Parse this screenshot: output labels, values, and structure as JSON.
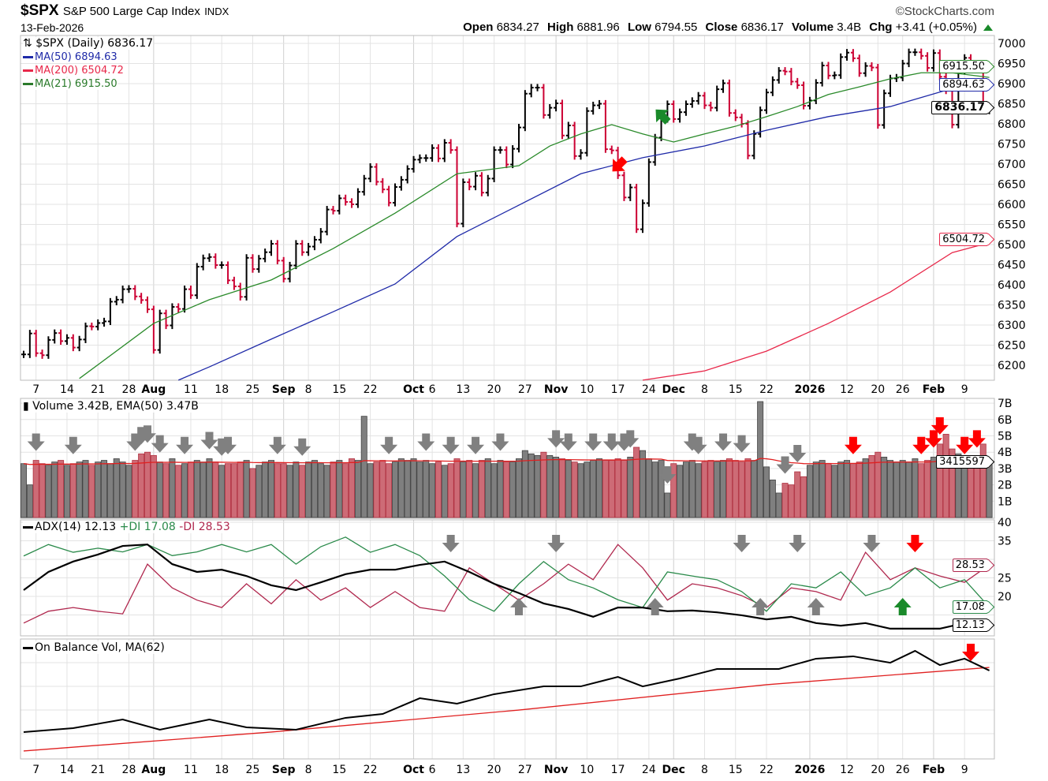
{
  "header": {
    "symbol": "$SPX",
    "name": "S&P 500 Large Cap Index",
    "exchange": "INDX",
    "date": "13-Feb-2026",
    "brand": "©StockCharts.com",
    "open_label": "Open",
    "open": "6834.27",
    "high_label": "High",
    "high": "6881.96",
    "low_label": "Low",
    "low": "6794.55",
    "close_label": "Close",
    "close": "6836.17",
    "volume_label": "Volume",
    "volume": "3.4B",
    "chg_label": "Chg",
    "chg": "+3.41 (+0.05%)",
    "chg_color": "#1a8a2a"
  },
  "legends": {
    "price": "$SPX (Daily) 6836.17",
    "ma50": "MA(50) 6894.63",
    "ma200": "MA(200) 6504.72",
    "ma21": "MA(21) 6915.50",
    "volume": "Volume 3.42B, EMA(50) 3.47B",
    "adx": "ADX(14) 12.13",
    "pdi": "+DI 17.08",
    "mdi": "-DI 28.53",
    "obv": "On Balance Vol, MA(62)"
  },
  "tags": {
    "ma21": "6915.50",
    "ma50": "6894.63",
    "close": "6836.17",
    "ma200": "6504.72",
    "volume_ema": "3415597",
    "mdi": "28.53",
    "pdi": "17.08",
    "adx": "12.13"
  },
  "colors": {
    "up_bar": "#000000",
    "down_bar": "#cc0033",
    "ma50": "#1f2aa8",
    "ma200": "#e8284a",
    "ma21": "#2a8a2a",
    "vol_up": "#7f7f7f",
    "vol_down": "#cd6b76",
    "vol_ema": "#e02020",
    "adx": "#000000",
    "pdi": "#2a8a4a",
    "mdi": "#b0284e",
    "obv": "#000000",
    "obv_ma": "#e02020",
    "arrow_gray": "#808080",
    "arrow_red": "#ff0000",
    "arrow_green": "#1a8a2a"
  },
  "chart_data": {
    "type": "ohlc-bar with indicator panels",
    "x_ticks": [
      {
        "i": 2,
        "label": "7"
      },
      {
        "i": 7,
        "label": "14"
      },
      {
        "i": 12,
        "label": "21"
      },
      {
        "i": 17,
        "label": "28"
      },
      {
        "i": 21,
        "label": "Aug",
        "bold": true
      },
      {
        "i": 27,
        "label": "11"
      },
      {
        "i": 32,
        "label": "18"
      },
      {
        "i": 37,
        "label": "25"
      },
      {
        "i": 42,
        "label": "Sep",
        "bold": true
      },
      {
        "i": 46,
        "label": "8"
      },
      {
        "i": 51,
        "label": "15"
      },
      {
        "i": 56,
        "label": "22"
      },
      {
        "i": 63,
        "label": "Oct",
        "bold": true
      },
      {
        "i": 66,
        "label": "6"
      },
      {
        "i": 71,
        "label": "13"
      },
      {
        "i": 76,
        "label": "20"
      },
      {
        "i": 81,
        "label": "27"
      },
      {
        "i": 86,
        "label": "Nov",
        "bold": true
      },
      {
        "i": 91,
        "label": "10"
      },
      {
        "i": 96,
        "label": "17"
      },
      {
        "i": 101,
        "label": "24"
      },
      {
        "i": 105,
        "label": "Dec",
        "bold": true
      },
      {
        "i": 110,
        "label": "8"
      },
      {
        "i": 115,
        "label": "15"
      },
      {
        "i": 120,
        "label": "22"
      },
      {
        "i": 127,
        "label": "2026",
        "bold": true
      },
      {
        "i": 133,
        "label": "12"
      },
      {
        "i": 138,
        "label": "20"
      },
      {
        "i": 142,
        "label": "26"
      },
      {
        "i": 147,
        "label": "Feb",
        "bold": true
      },
      {
        "i": 152,
        "label": "9"
      }
    ],
    "price": {
      "yticks": [
        7000,
        6950,
        6900,
        6850,
        6800,
        6750,
        6700,
        6650,
        6600,
        6550,
        6500,
        6450,
        6400,
        6350,
        6300,
        6250,
        6200
      ],
      "ylim": [
        6160,
        7020
      ],
      "close": [
        6227,
        6279,
        6230,
        6225,
        6263,
        6280,
        6260,
        6268,
        6244,
        6264,
        6297,
        6296,
        6305,
        6309,
        6358,
        6363,
        6389,
        6390,
        6371,
        6362,
        6339,
        6238,
        6329,
        6299,
        6345,
        6340,
        6389,
        6374,
        6445,
        6466,
        6469,
        6449,
        6449,
        6411,
        6396,
        6370,
        6467,
        6439,
        6465,
        6481,
        6502,
        6460,
        6415,
        6448,
        6502,
        6481,
        6495,
        6512,
        6532,
        6587,
        6584,
        6615,
        6606,
        6600,
        6631,
        6664,
        6693,
        6656,
        6637,
        6604,
        6643,
        6661,
        6688,
        6711,
        6715,
        6715,
        6740,
        6714,
        6753,
        6735,
        6552,
        6655,
        6644,
        6671,
        6629,
        6664,
        6735,
        6735,
        6699,
        6738,
        6791,
        6875,
        6890,
        6890,
        6822,
        6840,
        6851,
        6771,
        6796,
        6720,
        6728,
        6832,
        6846,
        6850,
        6737,
        6734,
        6672,
        6617,
        6642,
        6538,
        6603,
        6705,
        6766,
        6812,
        6849,
        6812,
        6829,
        6849,
        6857,
        6870,
        6846,
        6840,
        6886,
        6901,
        6827,
        6816,
        6800,
        6721,
        6775,
        6834,
        6878,
        6909,
        6932,
        6930,
        6905,
        6896,
        6845,
        6858,
        6902,
        6945,
        6920,
        6921,
        6966,
        6977,
        6963,
        6926,
        6944,
        6940,
        6797,
        6876,
        6913,
        6915,
        6950,
        6978,
        6978,
        6969,
        6939,
        6976,
        6917,
        6883,
        6798,
        6932,
        6964,
        6942,
        6941,
        6833,
        6836.17
      ],
      "ma21": {
        "i": [
          9,
          21,
          30,
          40,
          50,
          60,
          70,
          80,
          85,
          90,
          95,
          100,
          105,
          110,
          115,
          120,
          125,
          130,
          135,
          140,
          145,
          150,
          156
        ],
        "v": [
          6167,
          6304,
          6363,
          6412,
          6490,
          6578,
          6676,
          6696,
          6745,
          6775,
          6798,
          6775,
          6755,
          6775,
          6794,
          6818,
          6843,
          6873,
          6892,
          6912,
          6927,
          6927,
          6915.5
        ]
      },
      "ma50": {
        "i": [
          25,
          30,
          40,
          50,
          60,
          70,
          80,
          90,
          100,
          110,
          120,
          130,
          140,
          150,
          156
        ],
        "v": [
          6163,
          6196,
          6265,
          6333,
          6402,
          6520,
          6598,
          6676,
          6716,
          6745,
          6784,
          6818,
          6843,
          6888,
          6894.63
        ]
      },
      "ma200": {
        "i": [
          100,
          110,
          120,
          130,
          140,
          150,
          156
        ],
        "v": [
          6163,
          6186,
          6235,
          6304,
          6382,
          6480,
          6504.72
        ]
      }
    },
    "volume": {
      "unit": "B",
      "yticks": [
        "7B",
        "6B",
        "5B",
        "4B",
        "3B",
        "2B",
        "1B"
      ],
      "values": [
        3.3,
        2.0,
        3.5,
        3.3,
        3.2,
        3.4,
        3.5,
        3.2,
        3.3,
        3.4,
        3.5,
        3.2,
        3.4,
        3.5,
        3.3,
        3.6,
        3.4,
        3.2,
        3.5,
        3.9,
        4.0,
        3.8,
        3.4,
        3.3,
        3.6,
        3.2,
        3.3,
        3.4,
        3.5,
        3.4,
        3.6,
        3.4,
        3.2,
        3.3,
        3.3,
        3.4,
        3.5,
        3.0,
        3.2,
        3.4,
        3.5,
        3.3,
        3.3,
        3.2,
        3.4,
        3.2,
        3.4,
        3.5,
        3.3,
        3.2,
        3.4,
        3.5,
        3.3,
        3.6,
        3.5,
        6.2,
        3.3,
        3.4,
        3.5,
        3.3,
        3.4,
        3.6,
        3.5,
        3.6,
        3.4,
        3.5,
        3.3,
        3.4,
        3.2,
        3.3,
        3.6,
        3.4,
        3.5,
        3.3,
        3.5,
        3.6,
        3.3,
        3.5,
        3.4,
        3.4,
        3.6,
        4.1,
        3.9,
        3.8,
        4.0,
        3.8,
        3.7,
        3.6,
        3.5,
        3.4,
        3.3,
        3.4,
        3.5,
        3.6,
        3.5,
        3.5,
        3.6,
        3.5,
        3.7,
        4.3,
        4.1,
        3.6,
        3.4,
        3.5,
        1.5,
        3.3,
        3.2,
        3.4,
        3.5,
        3.3,
        3.4,
        3.5,
        3.4,
        3.5,
        3.6,
        3.5,
        3.4,
        3.6,
        3.5,
        7.1,
        3.1,
        2.3,
        1.5,
        2.1,
        2.0,
        2.8,
        2.5,
        3.2,
        3.4,
        3.5,
        3.3,
        3.2,
        3.4,
        3.5,
        3.3,
        3.4,
        3.6,
        3.8,
        4.0,
        3.7,
        3.5,
        3.4,
        3.5,
        3.4,
        3.6,
        3.3,
        3.5,
        3.7,
        4.5,
        5.1,
        4.2,
        3.9,
        3.3,
        3.4,
        3.7,
        4.5,
        3.42
      ]
    },
    "adx": {
      "yticks": [
        40,
        35,
        25,
        20
      ],
      "i": [
        0,
        4,
        8,
        12,
        16,
        20,
        24,
        28,
        32,
        36,
        40,
        44,
        48,
        52,
        56,
        60,
        64,
        68,
        72,
        76,
        80,
        84,
        88,
        92,
        96,
        100,
        104,
        108,
        112,
        116,
        120,
        124,
        128,
        132,
        136,
        140,
        144,
        148,
        152,
        156
      ],
      "adx": [
        21.7,
        26.6,
        29.4,
        31.3,
        33.6,
        34,
        28.7,
        26.6,
        27.2,
        25.5,
        23,
        21.7,
        23.8,
        26,
        27.2,
        27.2,
        28.5,
        29.4,
        26.6,
        23.4,
        20.9,
        18.1,
        16.6,
        14.5,
        17,
        17,
        16,
        16.2,
        15.7,
        14.9,
        13.8,
        14.5,
        12.8,
        12.1,
        12.8,
        11.3,
        11.3,
        11.3,
        12.8,
        12.13
      ],
      "pdi": [
        30.9,
        34,
        31.9,
        33,
        32,
        34,
        31,
        32,
        34,
        32,
        34,
        28.7,
        33.4,
        36,
        31.9,
        34,
        31,
        25.5,
        19.1,
        16,
        23.4,
        29.4,
        24.5,
        22.3,
        19.1,
        17,
        26.6,
        25.5,
        24.5,
        21.3,
        16,
        23.4,
        22.3,
        26.6,
        20.2,
        22.3,
        27.7,
        22.3,
        24.5,
        17.08
      ],
      "mdi": [
        12.8,
        16,
        17,
        16,
        15.3,
        28.7,
        22.3,
        19,
        17,
        23.4,
        18,
        24.5,
        19,
        22.3,
        17,
        21.3,
        17,
        16,
        27.7,
        23.4,
        19,
        23.4,
        28.7,
        24.5,
        34,
        27.7,
        19,
        23.4,
        22.3,
        20.2,
        17,
        22.3,
        21.3,
        19,
        31.9,
        24.5,
        27.7,
        25.5,
        23.8,
        28.53
      ]
    },
    "obv": {
      "i": [
        0,
        8,
        16,
        22,
        30,
        36,
        44,
        52,
        58,
        64,
        70,
        76,
        84,
        90,
        96,
        100,
        106,
        112,
        118,
        122,
        128,
        134,
        140,
        144,
        148,
        152,
        156
      ],
      "obv": [
        22.7,
        26,
        33.3,
        24.7,
        33.3,
        26.7,
        24.7,
        34.7,
        38,
        51.3,
        46.7,
        54.7,
        61.3,
        61.3,
        69.3,
        61.3,
        68,
        76,
        76,
        76,
        84.7,
        86.7,
        81.3,
        91.3,
        79.3,
        84.7,
        74.7
      ],
      "ma_i": [
        0,
        40,
        80,
        120,
        156
      ],
      "ma": [
        6.7,
        22.7,
        41.3,
        62.7,
        77.3
      ]
    },
    "annotations": [
      {
        "panel": "price",
        "i": 96,
        "dir": "down-left",
        "color": "red"
      },
      {
        "panel": "price",
        "i": 103,
        "dir": "up-left",
        "color": "green"
      },
      {
        "panel": "volume",
        "i": 2,
        "dir": "down",
        "color": "gray"
      },
      {
        "panel": "volume",
        "i": 8,
        "dir": "down",
        "color": "gray"
      },
      {
        "panel": "volume",
        "i": 18,
        "dir": "down",
        "color": "gray"
      },
      {
        "panel": "volume",
        "i": 19,
        "dir": "down",
        "color": "gray"
      },
      {
        "panel": "volume",
        "i": 20,
        "dir": "down",
        "color": "gray"
      },
      {
        "panel": "volume",
        "i": 22,
        "dir": "down",
        "color": "gray"
      },
      {
        "panel": "volume",
        "i": 26,
        "dir": "down",
        "color": "gray"
      },
      {
        "panel": "volume",
        "i": 30,
        "dir": "down",
        "color": "gray"
      },
      {
        "panel": "volume",
        "i": 32,
        "dir": "down",
        "color": "gray"
      },
      {
        "panel": "volume",
        "i": 33,
        "dir": "down",
        "color": "gray"
      },
      {
        "panel": "volume",
        "i": 41,
        "dir": "down",
        "color": "gray"
      },
      {
        "panel": "volume",
        "i": 45,
        "dir": "down",
        "color": "gray"
      },
      {
        "panel": "volume",
        "i": 59,
        "dir": "down",
        "color": "gray"
      },
      {
        "panel": "volume",
        "i": 65,
        "dir": "down",
        "color": "gray"
      },
      {
        "panel": "volume",
        "i": 69,
        "dir": "down",
        "color": "gray"
      },
      {
        "panel": "volume",
        "i": 73,
        "dir": "down",
        "color": "gray"
      },
      {
        "panel": "volume",
        "i": 77,
        "dir": "down",
        "color": "gray"
      },
      {
        "panel": "volume",
        "i": 86,
        "dir": "down",
        "color": "gray"
      },
      {
        "panel": "volume",
        "i": 88,
        "dir": "down",
        "color": "gray"
      },
      {
        "panel": "volume",
        "i": 92,
        "dir": "down",
        "color": "gray"
      },
      {
        "panel": "volume",
        "i": 95,
        "dir": "down",
        "color": "gray"
      },
      {
        "panel": "volume",
        "i": 97,
        "dir": "down",
        "color": "gray"
      },
      {
        "panel": "volume",
        "i": 98,
        "dir": "down",
        "color": "gray"
      },
      {
        "panel": "volume",
        "i": 104,
        "dir": "down",
        "color": "gray"
      },
      {
        "panel": "volume",
        "i": 108,
        "dir": "down",
        "color": "gray"
      },
      {
        "panel": "volume",
        "i": 109,
        "dir": "down",
        "color": "gray"
      },
      {
        "panel": "volume",
        "i": 113,
        "dir": "down",
        "color": "gray"
      },
      {
        "panel": "volume",
        "i": 116,
        "dir": "down",
        "color": "gray"
      },
      {
        "panel": "volume",
        "i": 123,
        "dir": "down",
        "color": "gray"
      },
      {
        "panel": "volume",
        "i": 125,
        "dir": "down",
        "color": "gray"
      },
      {
        "panel": "volume",
        "i": 134,
        "dir": "down",
        "color": "red"
      },
      {
        "panel": "volume",
        "i": 145,
        "dir": "down",
        "color": "red"
      },
      {
        "panel": "volume",
        "i": 147,
        "dir": "down",
        "color": "red"
      },
      {
        "panel": "volume",
        "i": 148,
        "dir": "down",
        "color": "red"
      },
      {
        "panel": "volume",
        "i": 152,
        "dir": "down",
        "color": "red"
      },
      {
        "panel": "volume",
        "i": 154,
        "dir": "down",
        "color": "red"
      },
      {
        "panel": "adx",
        "i": 69,
        "dir": "down",
        "color": "gray"
      },
      {
        "panel": "adx",
        "i": 86,
        "dir": "down",
        "color": "gray"
      },
      {
        "panel": "adx",
        "i": 116,
        "dir": "down",
        "color": "gray"
      },
      {
        "panel": "adx",
        "i": 125,
        "dir": "down",
        "color": "gray"
      },
      {
        "panel": "adx",
        "i": 137,
        "dir": "down",
        "color": "gray"
      },
      {
        "panel": "adx",
        "i": 144,
        "dir": "down",
        "color": "red"
      },
      {
        "panel": "adx",
        "i": 80,
        "dir": "up",
        "color": "gray"
      },
      {
        "panel": "adx",
        "i": 102,
        "dir": "up",
        "color": "gray"
      },
      {
        "panel": "adx",
        "i": 119,
        "dir": "up",
        "color": "gray"
      },
      {
        "panel": "adx",
        "i": 128,
        "dir": "up",
        "color": "gray"
      },
      {
        "panel": "adx",
        "i": 142,
        "dir": "up",
        "color": "green"
      },
      {
        "panel": "obv",
        "i": 153,
        "dir": "down",
        "color": "red"
      }
    ]
  }
}
